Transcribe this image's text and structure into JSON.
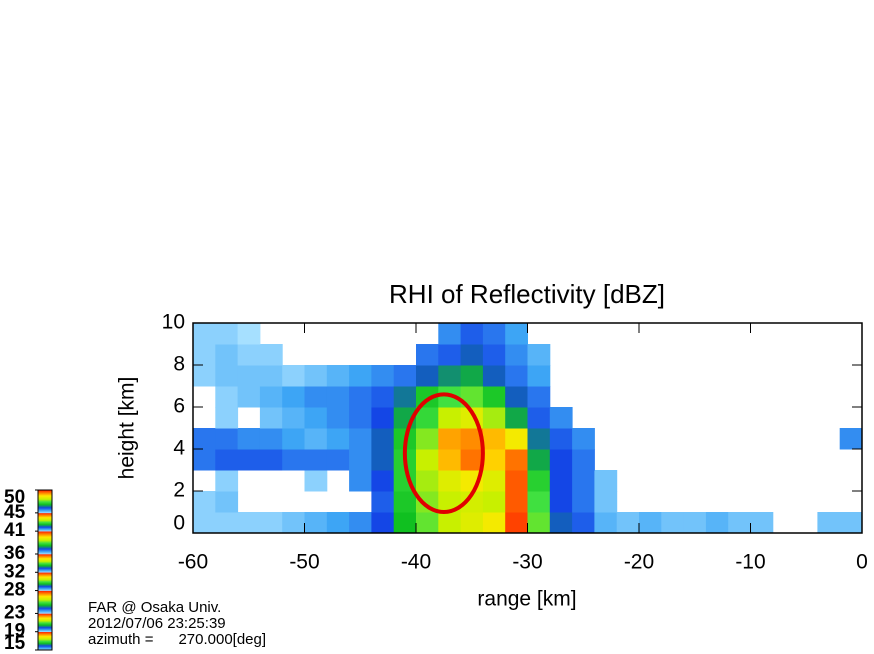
{
  "chart_data": {
    "type": "heatmap",
    "title": "RHI of Reflectivity [dBZ]",
    "x_label": "range [km]",
    "y_label": "height [km]",
    "xlim": [
      -60,
      0
    ],
    "ylim": [
      0,
      10
    ],
    "xticks": [
      -60,
      -50,
      -40,
      -30,
      -20,
      -10,
      0
    ],
    "yticks": [
      0,
      2,
      4,
      6,
      8,
      10
    ],
    "xbins": [
      -60,
      -58,
      -56,
      -54,
      -52,
      -50,
      -48,
      -46,
      -44,
      -42,
      -40,
      -38,
      -36,
      -34,
      -32,
      -30,
      -28,
      -26,
      -24,
      -22,
      -20,
      -18,
      -16,
      -14,
      -12,
      -10,
      -8,
      -6,
      -4,
      -2,
      0
    ],
    "ybins": [
      0,
      1,
      2,
      3,
      4,
      5,
      6,
      7,
      8,
      9,
      10
    ],
    "z": [
      [
        16,
        16,
        16,
        16,
        17,
        18,
        19,
        20,
        23,
        28,
        33,
        36,
        38,
        40,
        48,
        33,
        24,
        22,
        18,
        17,
        18,
        17,
        17,
        18,
        17,
        17,
        null,
        null,
        17,
        17
      ],
      [
        16,
        17,
        null,
        null,
        null,
        null,
        null,
        null,
        22,
        29,
        34,
        36,
        37,
        36,
        47,
        32,
        23,
        21,
        17,
        null,
        null,
        null,
        null,
        null,
        null,
        null,
        null,
        null,
        null,
        null
      ],
      [
        null,
        16,
        null,
        null,
        null,
        16,
        null,
        20,
        23,
        30,
        35,
        38,
        40,
        38,
        47,
        30,
        23,
        21,
        17,
        null,
        null,
        null,
        null,
        null,
        null,
        null,
        null,
        null,
        null,
        null
      ],
      [
        21,
        22,
        22,
        22,
        21,
        21,
        21,
        20,
        24,
        30,
        36,
        43,
        46,
        42,
        46,
        27,
        23,
        21,
        null,
        null,
        null,
        null,
        null,
        null,
        null,
        null,
        null,
        null,
        null,
        null
      ],
      [
        21,
        21,
        20,
        20,
        19,
        18,
        19,
        20,
        24,
        29,
        34,
        44,
        45,
        43,
        40,
        25,
        22,
        20,
        null,
        null,
        null,
        null,
        null,
        null,
        null,
        null,
        null,
        null,
        null,
        20
      ],
      [
        null,
        16,
        null,
        17,
        18,
        19,
        20,
        21,
        23,
        27,
        31,
        36,
        38,
        35,
        27,
        22,
        20,
        null,
        null,
        null,
        null,
        null,
        null,
        null,
        null,
        null,
        null,
        null,
        null,
        null
      ],
      [
        null,
        16,
        17,
        18,
        19,
        20,
        20,
        21,
        22,
        25,
        29,
        32,
        33,
        29,
        24,
        21,
        null,
        null,
        null,
        null,
        null,
        null,
        null,
        null,
        null,
        null,
        null,
        null,
        null,
        null
      ],
      [
        16,
        17,
        17,
        17,
        16,
        17,
        18,
        19,
        20,
        21,
        24,
        26,
        27,
        24,
        21,
        19,
        null,
        null,
        null,
        null,
        null,
        null,
        null,
        null,
        null,
        null,
        null,
        null,
        null,
        null
      ],
      [
        16,
        17,
        16,
        16,
        null,
        null,
        null,
        null,
        null,
        null,
        21,
        22,
        24,
        22,
        20,
        18,
        null,
        null,
        null,
        null,
        null,
        null,
        null,
        null,
        null,
        null,
        null,
        null,
        null,
        null
      ],
      [
        16,
        16,
        15,
        null,
        null,
        null,
        null,
        null,
        null,
        null,
        null,
        20,
        22,
        21,
        19,
        null,
        null,
        null,
        null,
        null,
        null,
        null,
        null,
        null,
        null,
        null,
        null,
        null,
        null,
        null
      ]
    ],
    "colorscale": [
      [
        15,
        "#a6e0ff"
      ],
      [
        19,
        "#3da5f5"
      ],
      [
        23,
        "#1446e6"
      ],
      [
        28,
        "#10c020"
      ],
      [
        32,
        "#40e040"
      ],
      [
        36,
        "#c8f000"
      ],
      [
        41,
        "#ffe800"
      ],
      [
        45,
        "#ff8c00"
      ],
      [
        50,
        "#ff1000"
      ]
    ],
    "colorbar_ticks": [
      15,
      19,
      23,
      28,
      32,
      36,
      41,
      45,
      50
    ],
    "highlight": {
      "cx": -37.5,
      "cy": 3.8,
      "rx": 3.5,
      "ry": 2.8,
      "color": "#e00000"
    },
    "info": [
      "FAR @ Osaka Univ.",
      "2012/07/06 23:25:39",
      "azimuth =      270.000[deg]"
    ]
  }
}
